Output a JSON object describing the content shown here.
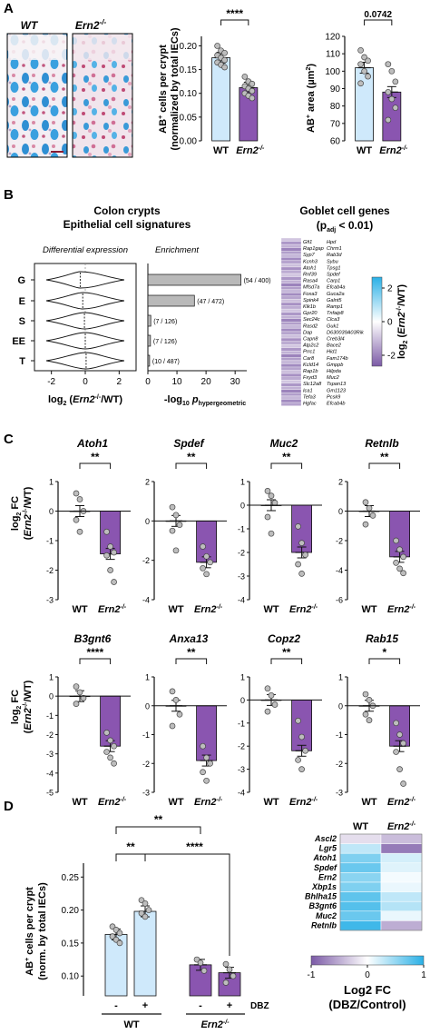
{
  "colors": {
    "wt": "#cfe9fb",
    "ko": "#8a55b0",
    "grey_bar": "#b9b9b9",
    "axis": "#111111",
    "heat_neg": "#7b5aa6",
    "heat_zero": "#ffffff",
    "heat_pos": "#2ab0e6"
  },
  "panelA": {
    "letter": "A",
    "img_wt_label": "WT",
    "img_ko_label": "Ern2",
    "img_ko_sup": "-/-",
    "bar1": {
      "ylabel_line1": "AB",
      "ylabel_sup": "+",
      "ylabel_rest": " cells per crypt",
      "ylabel_line2": "(normalized by total IECs)",
      "sig": "****",
      "ticks": [
        "0.00",
        "0.05",
        "0.10",
        "0.15",
        "0.20"
      ]
    },
    "bar2": {
      "ylabel_a": "AB",
      "ylabel_sup": "+",
      "ylabel_b": " area (µm",
      "ylabel_sup2": "2",
      "ylabel_c": ")",
      "sig": "0.0742",
      "ticks": [
        "60",
        "70",
        "80",
        "90",
        "100",
        "110",
        "120"
      ]
    },
    "xlabel_wt": "WT",
    "xlabel_ko": "Ern2",
    "xlabel_ko_sup": "-/-"
  },
  "panelB": {
    "letter": "B",
    "title1": "Colon crypts",
    "title2": "Epithelial cell signatures",
    "sub_left": "Differential expression",
    "sub_right": "Enrichment",
    "rows": [
      "G",
      "E",
      "S",
      "EE",
      "T"
    ],
    "enrich_labels": [
      "(54 / 400)",
      "(47 / 472)",
      "(7 / 126)",
      "(7 / 126)",
      "(10 / 487)"
    ],
    "left_ticks": [
      "-2",
      "0",
      "2"
    ],
    "right_ticks": [
      "0",
      "10",
      "20",
      "30"
    ],
    "xlabel_left_a": "log",
    "xlabel_left_sub": "2",
    "xlabel_left_b": " (",
    "xlabel_left_it": "Ern2",
    "xlabel_left_sup": "-/-",
    "xlabel_left_c": "/WT)",
    "xlabel_right_a": "-log",
    "xlabel_right_sub": "10",
    "xlabel_right_p": " p",
    "xlabel_right_psub": "hypergeometric",
    "goblet_title": "Goblet cell genes",
    "goblet_sub_a": "(p",
    "goblet_sub_sub": "adj",
    "goblet_sub_b": " < 0.01)",
    "genes_col1": [
      "Gfi1",
      "Rap1gap",
      "Syp7",
      "Kcnh3",
      "Atoh1",
      "Rnf39",
      "Rasa4",
      "Mfsd7a",
      "Foxa3",
      "Spink4",
      "Klk1b",
      "Gpr20",
      "Sec24c",
      "Rasd2",
      "Dap",
      "Capn8",
      "Atp2c2",
      "Prrc1",
      "Car8",
      "Kcld14",
      "Rap1b",
      "Fxyd3",
      "Slc12a8",
      "Ica1",
      "Tefa3",
      "Hgfac"
    ],
    "genes_col2": [
      "Hpd",
      "Chrm1",
      "Rab3d",
      "Sybu",
      "Tpsg1",
      "Spdef",
      "Carp1",
      "Efcab4a",
      "Guca2a",
      "Galnt5",
      "Ramp1",
      "Tnfaip8",
      "Clca3",
      "Guk1",
      "D630039A03Rik",
      "Creb3l4",
      "Bace2",
      "Hid1",
      "Fam174b",
      "Gmppb",
      "Hilpda",
      "Muc2",
      "Tspan13",
      "Gm1123",
      "Pcsk9",
      "Efcab4b"
    ],
    "colorbar_ticks": [
      "2",
      "0",
      "-2"
    ],
    "colorbar_label_a": "log",
    "colorbar_label_sub": "2",
    "colorbar_label_b": " (",
    "colorbar_label_it": "Ern2",
    "colorbar_label_sup": "-/-",
    "colorbar_label_c": "/WT)"
  },
  "panelC": {
    "letter": "C",
    "ylabel_a": "log",
    "ylabel_sub": "2",
    "ylabel_b": " FC",
    "ylabel2_a": "(",
    "ylabel2_it": "Ern2",
    "ylabel2_sup": "-/-",
    "ylabel2_b": "/WT)",
    "xlabel_wt": "WT",
    "xlabel_ko": "Ern2",
    "xlabel_ko_sup": "-/-"
  },
  "panelD": {
    "letter": "D",
    "ylabel_a": "AB",
    "ylabel_sup": "+",
    "ylabel_b": " cells per crypt",
    "ylabel2": "(norm. by total IECs)",
    "ticks": [
      "0.10",
      "0.15",
      "0.20",
      "0.25"
    ],
    "sig_top": "**",
    "sig_left": "**",
    "sig_right": "****",
    "dbz_label": "DBZ",
    "minus": "-",
    "plus": "+",
    "group_wt": "WT",
    "group_ko": "Ern2",
    "group_ko_sup": "-/-",
    "heat_col_wt": "WT",
    "heat_col_ko": "Ern2",
    "heat_col_ko_sup": "-/-",
    "heat_genes": [
      "Ascl2",
      "Lgr5",
      "Atoh1",
      "Spdef",
      "Ern2",
      "Xbp1s",
      "Bhlha15",
      "B3gnt6",
      "Muc2",
      "Retnlb"
    ],
    "heat_ticks": [
      "-1",
      "0",
      "1"
    ],
    "heat_label1": "Log2 FC",
    "heat_label2": "(DBZ/Control)"
  },
  "chart_data": [
    {
      "type": "bar",
      "panel": "A-left",
      "categories": [
        "WT",
        "Ern2-/-"
      ],
      "values": [
        0.175,
        0.112
      ],
      "points": [
        [
          0.2,
          0.19,
          0.185,
          0.18,
          0.175,
          0.17,
          0.165,
          0.16,
          0.155
        ],
        [
          0.135,
          0.125,
          0.12,
          0.115,
          0.11,
          0.105,
          0.1,
          0.095,
          0.09
        ]
      ],
      "ylabel": "AB+ cells per crypt (normalized by total IECs)",
      "ylim": [
        0,
        0.22
      ],
      "significance": "****"
    },
    {
      "type": "bar",
      "panel": "A-right",
      "categories": [
        "WT",
        "Ern2-/-"
      ],
      "values": [
        102,
        88
      ],
      "points": [
        [
          112,
          108,
          106,
          104,
          100,
          97,
          93
        ],
        [
          104,
          100,
          94,
          88,
          84,
          79,
          72
        ]
      ],
      "ylabel": "AB+ area (µm2)",
      "ylim": [
        60,
        120
      ],
      "significance": "0.0742"
    },
    {
      "type": "bar",
      "panel": "B-enrichment",
      "categories": [
        "G",
        "E",
        "S",
        "EE",
        "T"
      ],
      "values": [
        32,
        16,
        1.0,
        0.9,
        0.6
      ],
      "xlabel": "-log10 p hypergeometric",
      "xlim": [
        0,
        34
      ]
    },
    {
      "type": "bar",
      "panel": "C",
      "genes": [
        {
          "name": "Atoh1",
          "values": [
            0,
            -1.45
          ],
          "points": [
            [
              0.6,
              0.4,
              0,
              -0.3,
              -0.7
            ],
            [
              -0.7,
              -1.2,
              -1.4,
              -1.5,
              -2.0,
              -2.4
            ]
          ],
          "ylim": [
            -3,
            1
          ],
          "ticks": [
            "1",
            "0",
            "-1",
            "-2",
            "-3"
          ],
          "sig": "**"
        },
        {
          "name": "Spdef",
          "values": [
            0,
            -2.1
          ],
          "points": [
            [
              0.7,
              0.3,
              -0.2,
              -0.5,
              -1.5
            ],
            [
              -1.3,
              -1.8,
              -2.1,
              -2.4,
              -2.7
            ]
          ],
          "ylim": [
            -4,
            2
          ],
          "ticks": [
            "2",
            "0",
            "-2",
            "-4"
          ],
          "sig": "**"
        },
        {
          "name": "Muc2",
          "values": [
            0,
            -2.0
          ],
          "points": [
            [
              0.6,
              0.4,
              0.1,
              -0.5,
              -1.2
            ],
            [
              -0.9,
              -1.6,
              -2.1,
              -2.5,
              -2.9
            ]
          ],
          "ylim": [
            -4,
            1
          ],
          "ticks": [
            "1",
            "0",
            "-1",
            "-2",
            "-3",
            "-4"
          ],
          "sig": "**"
        },
        {
          "name": "Retnlb",
          "values": [
            0,
            -3.1
          ],
          "points": [
            [
              0.6,
              0.2,
              -0.3,
              -0.9
            ],
            [
              -2.0,
              -2.6,
              -3.1,
              -3.5,
              -3.9,
              -4.2
            ]
          ],
          "ylim": [
            -6,
            2
          ],
          "ticks": [
            "2",
            "0",
            "-2",
            "-4",
            "-6"
          ],
          "sig": "**"
        },
        {
          "name": "B3gnt6",
          "values": [
            0,
            -2.6
          ],
          "points": [
            [
              0.5,
              0.2,
              -0.1,
              -0.4
            ],
            [
              -1.9,
              -2.3,
              -2.6,
              -2.9,
              -3.2,
              -3.5
            ]
          ],
          "ylim": [
            -5,
            1
          ],
          "ticks": [
            "1",
            "0",
            "-1",
            "-2",
            "-3",
            "-4",
            "-5"
          ],
          "sig": "****"
        },
        {
          "name": "Anxa13",
          "values": [
            0,
            -1.9
          ],
          "points": [
            [
              0.5,
              0.2,
              -0.3,
              -0.7
            ],
            [
              -1.4,
              -1.8,
              -2.0,
              -2.3,
              -2.6
            ]
          ],
          "ylim": [
            -3,
            1
          ],
          "ticks": [
            "1",
            "0",
            "-1",
            "-2",
            "-3"
          ],
          "sig": "**"
        },
        {
          "name": "Copz2",
          "values": [
            0,
            -2.2
          ],
          "points": [
            [
              0.5,
              0.2,
              -0.2,
              -0.5
            ],
            [
              -0.9,
              -1.6,
              -2.2,
              -2.6,
              -3.0
            ]
          ],
          "ylim": [
            -4,
            1
          ],
          "ticks": [
            "1",
            "0",
            "-1",
            "-2",
            "-3",
            "-4"
          ],
          "sig": "**"
        },
        {
          "name": "Rab15",
          "values": [
            0,
            -1.4
          ],
          "points": [
            [
              0.4,
              0.2,
              0,
              -0.3,
              -0.5
            ],
            [
              -0.6,
              -1.0,
              -1.3,
              -1.6,
              -2.2,
              -2.7
            ]
          ],
          "ylim": [
            -3,
            1
          ],
          "ticks": [
            "1",
            "0",
            "-1",
            "-2",
            "-3"
          ],
          "sig": "*"
        }
      ],
      "categories": [
        "WT",
        "Ern2-/-"
      ]
    },
    {
      "type": "bar",
      "panel": "D-bars",
      "categories": [
        "WT -",
        "WT +",
        "Ern2-/- -",
        "Ern2-/- +"
      ],
      "values": [
        0.163,
        0.198,
        0.117,
        0.105
      ],
      "points": [
        [
          0.175,
          0.17,
          0.165,
          0.16,
          0.155,
          0.15
        ],
        [
          0.215,
          0.21,
          0.2,
          0.195,
          0.19
        ],
        [
          0.125,
          0.12,
          0.108
        ],
        [
          0.118,
          0.11,
          0.1,
          0.09
        ]
      ],
      "ylabel": "AB+ cells per crypt (norm. by total IECs)",
      "ylim": [
        0.07,
        0.26
      ]
    },
    {
      "type": "heatmap",
      "panel": "D-heatmap",
      "columns": [
        "WT",
        "Ern2-/-"
      ],
      "rows": [
        "Ascl2",
        "Lgr5",
        "Atoh1",
        "Spdef",
        "Ern2",
        "Xbp1s",
        "Bhlha15",
        "B3gnt6",
        "Muc2",
        "Retnlb"
      ],
      "values": [
        [
          -0.2,
          -0.4
        ],
        [
          0.3,
          -0.8
        ],
        [
          0.6,
          0.2
        ],
        [
          0.7,
          0.15
        ],
        [
          0.55,
          0.05
        ],
        [
          0.6,
          0.1
        ],
        [
          0.75,
          0.3
        ],
        [
          0.8,
          0.35
        ],
        [
          0.7,
          0.1
        ],
        [
          0.9,
          -0.5
        ]
      ],
      "range": [
        -1,
        1
      ]
    }
  ]
}
